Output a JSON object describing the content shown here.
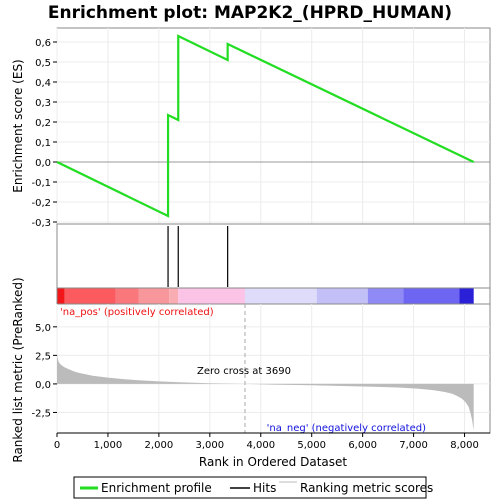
{
  "chart_data": {
    "type": "line",
    "title": "Enrichment plot: MAP2K2_(HPRD_HUMAN)",
    "xlabel": "Rank in Ordered Dataset",
    "es_ylabel": "Enrichment score (ES)",
    "metric_ylabel": "Ranked list metric (PreRanked)",
    "xlim": [
      0,
      8500
    ],
    "es_ylim": [
      -0.31,
      0.67
    ],
    "metric_ylim": [
      -4.3,
      7.0
    ],
    "x_ticks": [
      "0",
      "1,000",
      "2,000",
      "3,000",
      "4,000",
      "5,000",
      "6,000",
      "7,000",
      "8,000"
    ],
    "x_tick_values": [
      0,
      1000,
      2000,
      3000,
      4000,
      5000,
      6000,
      7000,
      8000
    ],
    "es_ticks": [
      "-0,3",
      "-0,2",
      "-0,1",
      "0,0",
      "0,1",
      "0,2",
      "0,3",
      "0,4",
      "0,5",
      "0,6"
    ],
    "es_tick_values": [
      -0.3,
      -0.2,
      -0.1,
      0.0,
      0.1,
      0.2,
      0.3,
      0.4,
      0.5,
      0.6
    ],
    "metric_ticks": [
      "-2,5",
      "0,0",
      "2,5",
      "5,0"
    ],
    "metric_tick_values": [
      -2.5,
      0.0,
      2.5,
      5.0
    ],
    "enrichment_profile": {
      "x": [
        0,
        2180,
        2180,
        2380,
        2380,
        3350,
        3350,
        8180
      ],
      "y": [
        0.0,
        -0.27,
        0.235,
        0.21,
        0.63,
        0.51,
        0.59,
        0.0
      ]
    },
    "hits": [
      2180,
      2380,
      3350
    ],
    "ranked_metric": {
      "x": [
        0,
        10,
        30,
        60,
        100,
        150,
        200,
        300,
        400,
        500,
        700,
        1000,
        1300,
        1600,
        2000,
        2400,
        3000,
        3690,
        4200,
        5000,
        5600,
        6200,
        6700,
        7100,
        7400,
        7600,
        7750,
        7850,
        7950,
        8020,
        8080,
        8120,
        8150,
        8170,
        8180
      ],
      "y": [
        2.7,
        2.3,
        1.95,
        1.75,
        1.6,
        1.45,
        1.35,
        1.15,
        1.0,
        0.9,
        0.72,
        0.55,
        0.42,
        0.32,
        0.22,
        0.14,
        0.06,
        0.0,
        -0.06,
        -0.12,
        -0.18,
        -0.25,
        -0.32,
        -0.42,
        -0.55,
        -0.7,
        -0.85,
        -1.05,
        -1.3,
        -1.6,
        -2.0,
        -2.6,
        -3.2,
        -3.8,
        -4.1
      ]
    },
    "zero_cross": 3690,
    "zero_cross_label": "Zero cross at 3690",
    "pos_label": "'na_pos' (positively correlated)",
    "neg_label": "'na_neg' (negatively correlated)",
    "heat_segments": [
      {
        "x0": 0,
        "x1": 150,
        "color": "#f2151a"
      },
      {
        "x0": 150,
        "x1": 1150,
        "color": "#fb5a5e"
      },
      {
        "x0": 1150,
        "x1": 1600,
        "color": "#fa777b"
      },
      {
        "x0": 1600,
        "x1": 2200,
        "color": "#f8979b"
      },
      {
        "x0": 2200,
        "x1": 2380,
        "color": "#f9adb2"
      },
      {
        "x0": 2380,
        "x1": 3690,
        "color": "#fbc4e6"
      },
      {
        "x0": 3690,
        "x1": 5100,
        "color": "#dedcfa"
      },
      {
        "x0": 5100,
        "x1": 6100,
        "color": "#c3c0f8"
      },
      {
        "x0": 6100,
        "x1": 6800,
        "color": "#908af6"
      },
      {
        "x0": 6800,
        "x1": 7900,
        "color": "#6e66f2"
      },
      {
        "x0": 7900,
        "x1": 8180,
        "color": "#2a20d8"
      }
    ],
    "colors": {
      "profile": "#22dd22",
      "hits": "#000000",
      "metric_fill": "#bbbbbb",
      "pos_label": "#ee1111",
      "neg_label": "#1111dd",
      "grid": "#ececec",
      "zero_cross_line": "#aaaaaa"
    },
    "legend": {
      "items": [
        "Enrichment profile",
        "Hits",
        "Ranking metric scores"
      ],
      "placement": "bottom"
    }
  }
}
